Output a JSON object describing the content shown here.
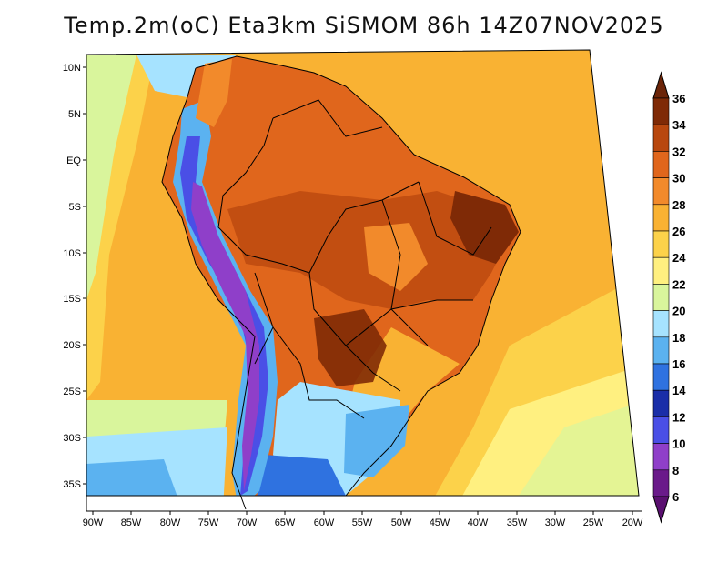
{
  "title": "Temp.2m(oC) Eta3km SiSMOM 86h 14Z07NOV2025",
  "latitude_labels": [
    "10N",
    "5N",
    "EQ",
    "5S",
    "10S",
    "15S",
    "20S",
    "25S",
    "30S",
    "35S"
  ],
  "longitude_labels": [
    "90W",
    "85W",
    "80W",
    "75W",
    "70W",
    "65W",
    "60W",
    "55W",
    "50W",
    "45W",
    "40W",
    "35W",
    "30W",
    "25W",
    "20W"
  ],
  "colorbar": {
    "labels": [
      "36",
      "34",
      "32",
      "30",
      "28",
      "26",
      "24",
      "22",
      "20",
      "18",
      "16",
      "14",
      "12",
      "10",
      "8",
      "6"
    ],
    "colors": [
      "#7f2a06",
      "#b8470e",
      "#e0661c",
      "#f28a2b",
      "#f9b233",
      "#fcd24a",
      "#fff080",
      "#d9f59c",
      "#a6e3ff",
      "#5bb2f0",
      "#2f72e0",
      "#1a2ea8",
      "#4a4fe6",
      "#8f3fc9",
      "#6a1a8a"
    ],
    "top_cap_color": "#6b2408",
    "bottom_cap_color": "#5a0f70"
  },
  "field_colors": {
    "ocean_warm": "#f9b233",
    "ocean_mid": "#fcd24a",
    "ocean_cool": "#fff080",
    "ocean_cold": "#d9f59c",
    "ocean_coast": "#a6e3ff",
    "land_hot": "#e0661c",
    "land_very_hot": "#b8470e",
    "land_extreme": "#7f2a06",
    "andes_high": "#4a4fe6",
    "andes_peak": "#8f3fc9",
    "south_cool": "#5bb2f0",
    "south_cold": "#2f72e0",
    "south_deep": "#1a2ea8"
  }
}
